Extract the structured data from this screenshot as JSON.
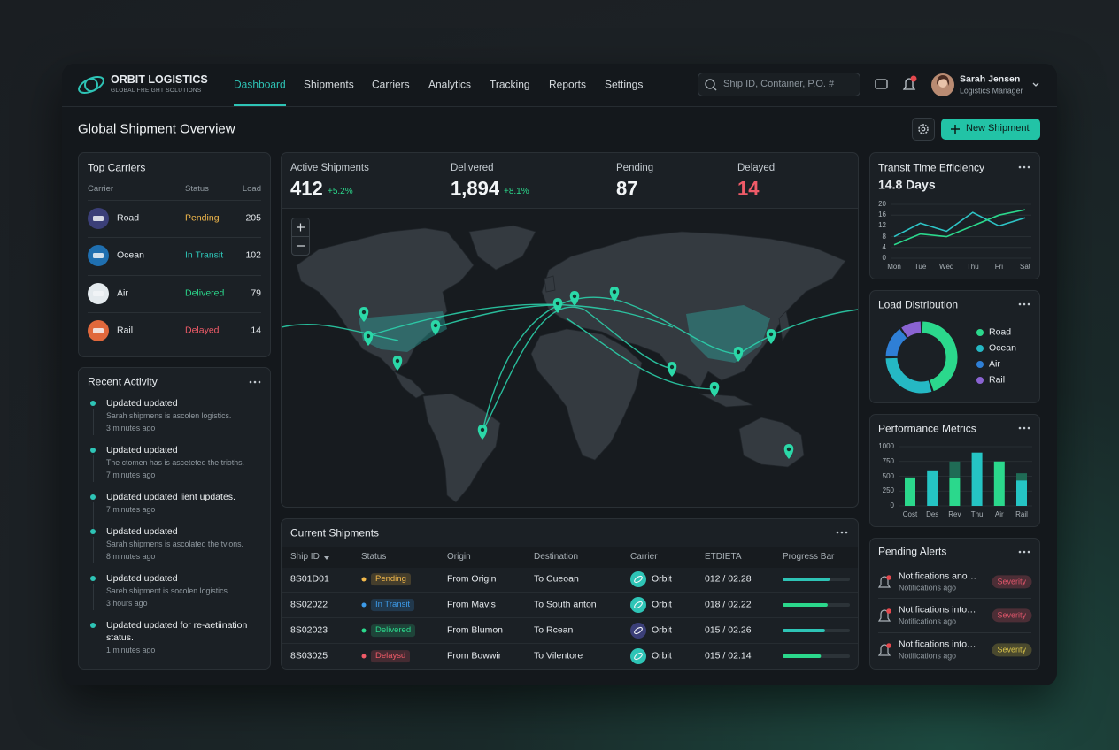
{
  "header": {
    "brand": "ORBIT LOGISTICS",
    "tagline": "GLOBAL FREIGHT SOLUTIONS",
    "nav": [
      "Dashboard",
      "Shipments",
      "Carriers",
      "Analytics",
      "Tracking",
      "Reports",
      "Settings"
    ],
    "active_nav": 0,
    "search_placeholder": "Ship ID, Container, P.O. #",
    "user": {
      "name": "Sarah Jensen",
      "role": "Logistics Manager"
    }
  },
  "page": {
    "title": "Global Shipment Overview",
    "primary_action": "New Shipment"
  },
  "top_carriers": {
    "title": "Top Carriers",
    "columns": [
      "Carrier",
      "Status",
      "Load"
    ],
    "rows": [
      {
        "carrier": "Road",
        "status": "Pending",
        "load": 205,
        "status_color": "#f2b84b",
        "icon_color": "#3b3f78"
      },
      {
        "carrier": "Ocean",
        "status": "In Transit",
        "load": 102,
        "status_color": "#2ec4b6",
        "icon_color": "#1f6fb0"
      },
      {
        "carrier": "Air",
        "status": "Delivered",
        "load": 79,
        "status_color": "#2bd88c",
        "icon_color": "#e4eaee"
      },
      {
        "carrier": "Rail",
        "status": "Delayed",
        "load": 14,
        "status_color": "#ef5b68",
        "icon_color": "#e0683c"
      }
    ]
  },
  "recent_activity": {
    "title": "Recent Activity",
    "items": [
      {
        "title": "Updated updated",
        "detail": "Sarah shipmens is ascolen logistics.",
        "time": "3 minutes ago"
      },
      {
        "title": "Updated updated",
        "detail": "The ctomen has is asceteted the trioths.",
        "time": "7 minutes ago"
      },
      {
        "title": "Updated updated lient updates.",
        "time": "7 minutes ago"
      },
      {
        "title": "Updated updated",
        "detail": "Sarah shipmens is ascolated the tvions.",
        "time": "8 minutes ago"
      },
      {
        "title": "Updated updated",
        "detail": "Sareh shipment is socolen logistics.",
        "time": "3 hours ago"
      },
      {
        "title": "Updated updated for re-aetiination status.",
        "time": "1 minutes ago"
      }
    ]
  },
  "kpis": [
    {
      "label": "Active Shipments",
      "value": 412,
      "change": "+5.2%",
      "value_color": "#f2f5f7"
    },
    {
      "label": "Delivered",
      "value": "1,894",
      "change": "+8.1%",
      "value_color": "#f2f5f7"
    },
    {
      "label": "Pending",
      "value": 87,
      "value_color": "#f2f5f7"
    },
    {
      "label": "Delayed",
      "value": 14,
      "value_color": "#ef5b68"
    }
  ],
  "current_shipments": {
    "title": "Current Shipments",
    "columns": [
      "Ship ID",
      "Status",
      "Origin",
      "Destination",
      "Carrier",
      "ETDIETA",
      "Progress Bar"
    ],
    "rows": [
      {
        "id": "8S01D01",
        "status": "Pending",
        "status_color": "#f2b84b",
        "origin": "From Origin",
        "destination": "To Cueoan",
        "carrier": "Orbit",
        "carrier_icon_color": "#2ec4b6",
        "eta": "012 / 02.28",
        "progress": 70,
        "progress_color": "#2ec4b6"
      },
      {
        "id": "8S02022",
        "status": "In Transit",
        "status_color": "#3d9be9",
        "origin": "From Mavis",
        "destination": "To South anton",
        "carrier": "Orbit",
        "carrier_icon_color": "#2ec4b6",
        "eta": "018 / 02.22",
        "progress": 67,
        "progress_color": "#2bd88c"
      },
      {
        "id": "8S02023",
        "status": "Delivered",
        "status_color": "#2bd88c",
        "origin": "From Blumon",
        "destination": "To Rcean",
        "carrier": "Orbit",
        "carrier_icon_color": "#3b3f78",
        "eta": "015 / 02.26",
        "progress": 63,
        "progress_color": "#2ec4b6"
      },
      {
        "id": "8S03025",
        "status": "Delaysd",
        "status_color": "#ef5b68",
        "origin": "From Bowwir",
        "destination": "To Vilentore",
        "carrier": "Orbit",
        "carrier_icon_color": "#2ec4b6",
        "eta": "015 / 02.14",
        "progress": 57,
        "progress_color": "#2bd88c"
      }
    ]
  },
  "transit_efficiency": {
    "title": "Transit Time Efficiency",
    "value": "14.8 Days",
    "chart": {
      "type": "line",
      "categories": [
        "Mon",
        "Tue",
        "Wed",
        "Thu",
        "Fri",
        "Sat"
      ],
      "ylim": [
        0,
        20
      ],
      "yticks": [
        0,
        4,
        8,
        12,
        16,
        20
      ],
      "grid": true,
      "series": [
        {
          "color": "#2ec4c6",
          "values": [
            8,
            13,
            10,
            17,
            12,
            15
          ]
        },
        {
          "color": "#2bd88c",
          "values": [
            5,
            9,
            8,
            12,
            16,
            18
          ]
        }
      ]
    }
  },
  "load_distribution": {
    "title": "Load Distribution",
    "chart": {
      "type": "donut",
      "categories": [
        "Road",
        "Ocean",
        "Air",
        "Rail"
      ],
      "values": [
        45,
        30,
        15,
        10
      ],
      "colors": [
        "#2bd88c",
        "#25b8c4",
        "#2f7fd6",
        "#8a63d2"
      ]
    }
  },
  "performance_metrics": {
    "title": "Performance Metrics",
    "chart": {
      "type": "bar",
      "categories": [
        "Cost",
        "Des",
        "Rev",
        "Thu",
        "Air",
        "Rail"
      ],
      "ylim": [
        0,
        1000
      ],
      "yticks": [
        0,
        250,
        500,
        750,
        1000
      ],
      "grid": true,
      "series": [
        {
          "colors": [
            "#2bd88c",
            "#25c4c4",
            "#2bd88c",
            "#25c4c4",
            "#2bd88c",
            "#25c4c4"
          ],
          "values": [
            480,
            600,
            480,
            900,
            750,
            430
          ]
        },
        {
          "color": "#1f6b55",
          "values": [
            null,
            null,
            270,
            null,
            null,
            120
          ]
        }
      ]
    }
  },
  "pending_alerts": {
    "title": "Pending Alerts",
    "items": [
      {
        "title": "Notifications ano…",
        "time": "Notifications ago",
        "badge": "Severity",
        "badge_color": "#e0566b"
      },
      {
        "title": "Notifications into…",
        "time": "Notifications ago",
        "badge": "Severity",
        "badge_color": "#e0566b"
      },
      {
        "title": "Notifications into…",
        "time": "Notifications ago",
        "badge": "Severity",
        "badge_color": "#d8c24a"
      }
    ]
  }
}
